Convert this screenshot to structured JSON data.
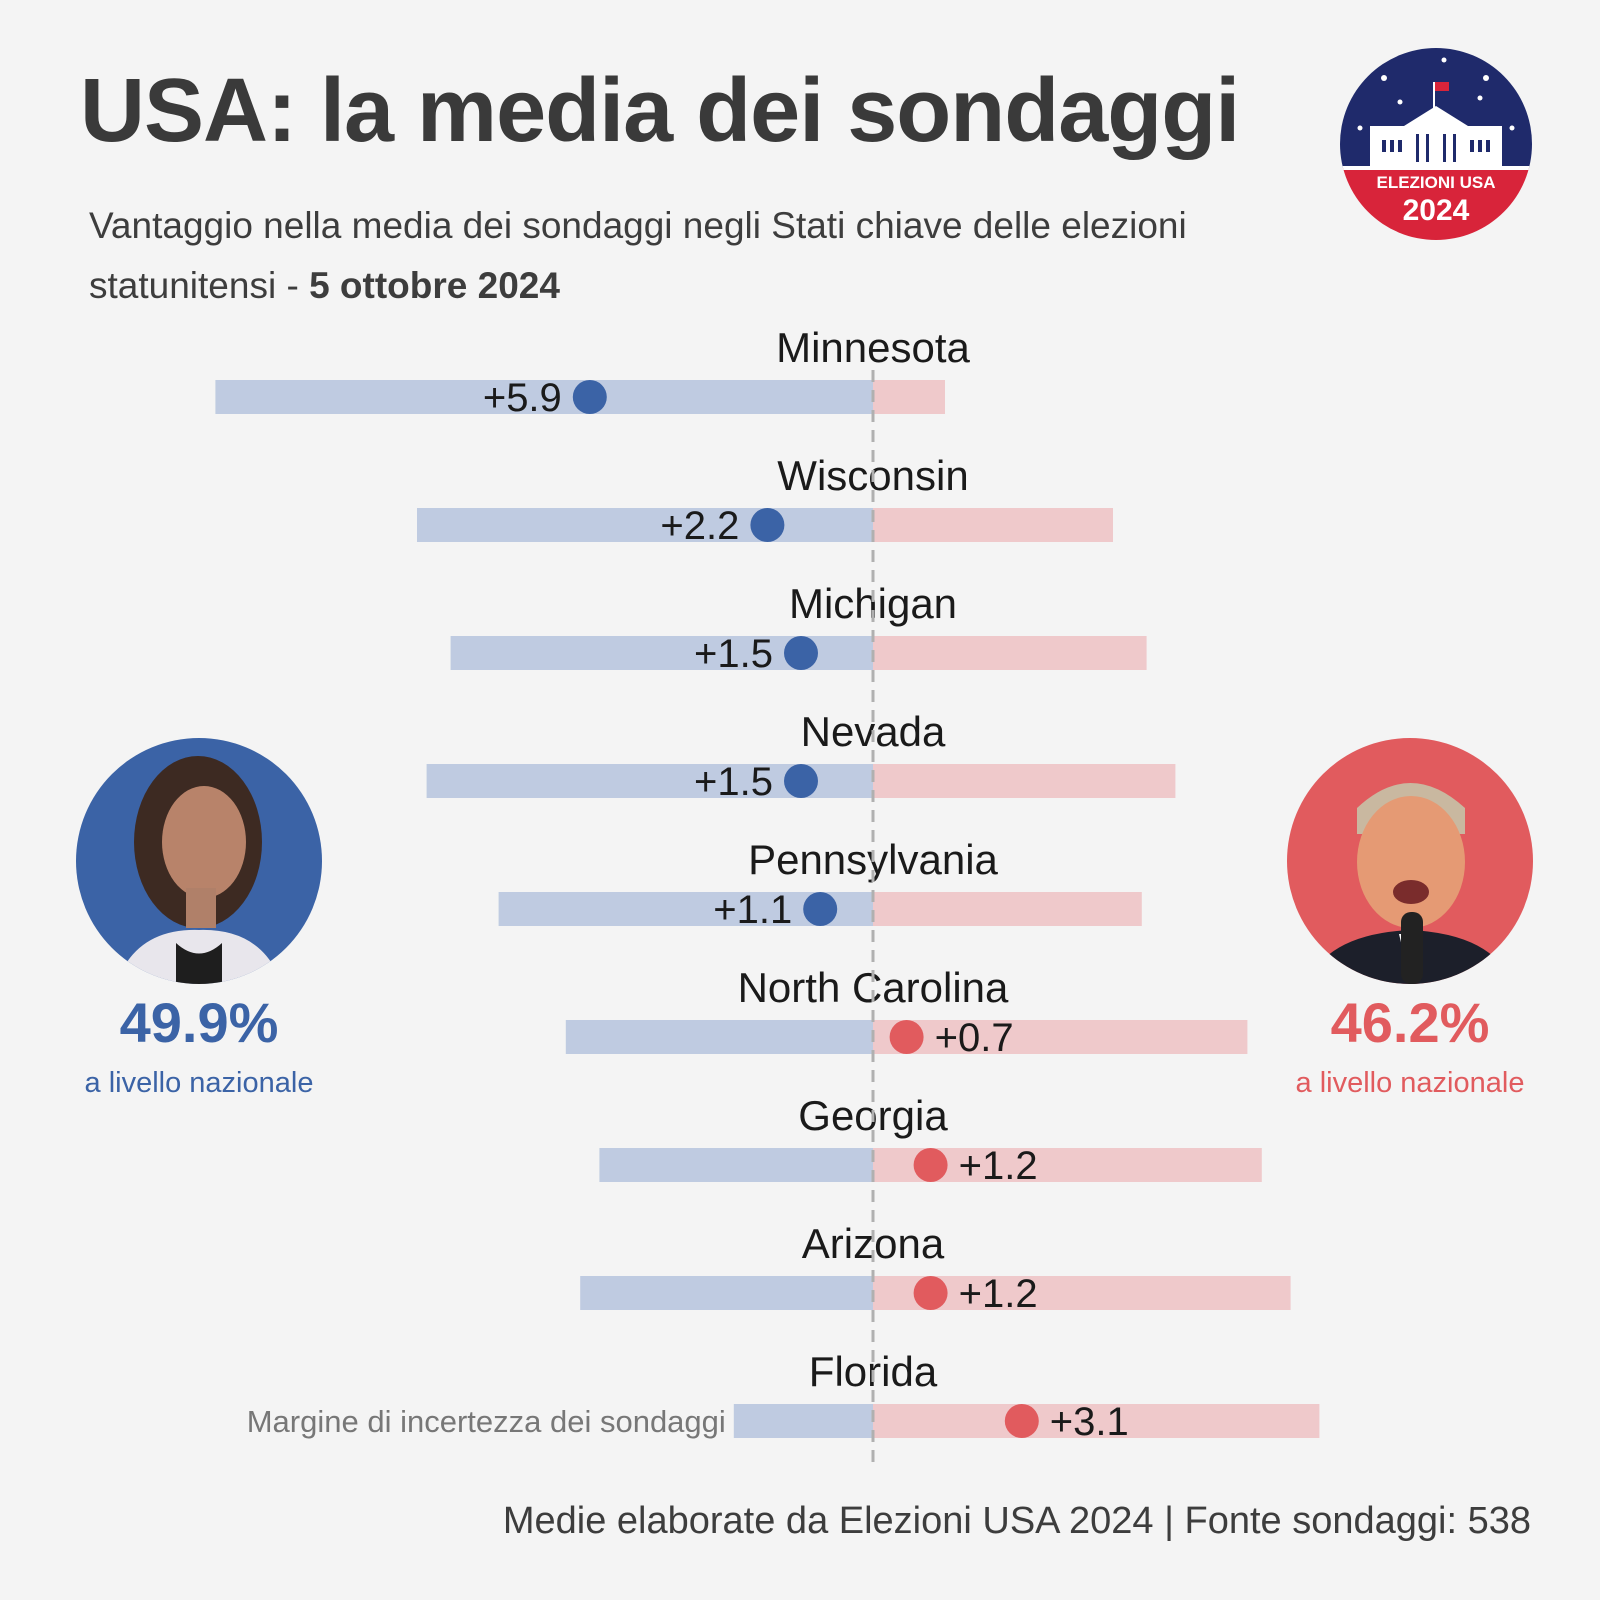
{
  "header": {
    "title": "USA: la media dei sondaggi",
    "subtitle_main": "Vantaggio nella media dei sondaggi negli Stati chiave delle elezioni statunitensi - ",
    "subtitle_date": "5 ottobre 2024"
  },
  "logo": {
    "line1": "ELEZIONI USA",
    "line2": "2024"
  },
  "candidates": {
    "left": {
      "pct": "49.9%",
      "level": "a livello nazionale",
      "color": "#3b63a6"
    },
    "right": {
      "pct": "46.2%",
      "level": "a livello nazionale",
      "color": "#e15b5e"
    }
  },
  "chart_data": {
    "type": "dot-range",
    "center_label": "Margine di incertezza dei sondaggi",
    "colors": {
      "dem": "#3b63a6",
      "rep": "#e15b5e",
      "dem_band": "#bfcbe1",
      "rep_band": "#efc9cb",
      "axis": "#b0b0b0"
    },
    "states": [
      {
        "name": "Minnesota",
        "lead": "+5.9",
        "side": "dem",
        "value": -5.9,
        "low": -13.7,
        "high": 1.5
      },
      {
        "name": "Wisconsin",
        "lead": "+2.2",
        "side": "dem",
        "value": -2.2,
        "low": -9.5,
        "high": 5.0
      },
      {
        "name": "Michigan",
        "lead": "+1.5",
        "side": "dem",
        "value": -1.5,
        "low": -8.8,
        "high": 5.7
      },
      {
        "name": "Nevada",
        "lead": "+1.5",
        "side": "dem",
        "value": -1.5,
        "low": -9.3,
        "high": 6.3
      },
      {
        "name": "Pennsylvania",
        "lead": "+1.1",
        "side": "dem",
        "value": -1.1,
        "low": -7.8,
        "high": 5.6
      },
      {
        "name": "North Carolina",
        "lead": "+0.7",
        "side": "rep",
        "value": 0.7,
        "low": -6.4,
        "high": 7.8
      },
      {
        "name": "Georgia",
        "lead": "+1.2",
        "side": "rep",
        "value": 1.2,
        "low": -5.7,
        "high": 8.1
      },
      {
        "name": "Arizona",
        "lead": "+1.2",
        "side": "rep",
        "value": 1.2,
        "low": -6.1,
        "high": 8.7
      },
      {
        "name": "Florida",
        "lead": "+3.1",
        "side": "rep",
        "value": 3.1,
        "low": -2.9,
        "high": 9.3
      }
    ]
  },
  "footer": {
    "source": "Medie elaborate da Elezioni USA 2024 | Fonte sondaggi: 538"
  }
}
